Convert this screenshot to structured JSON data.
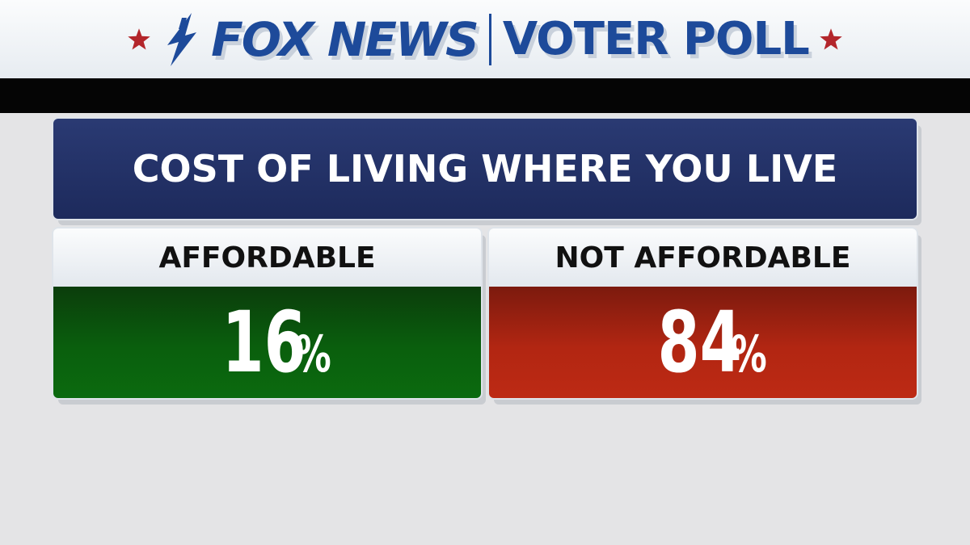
{
  "header": {
    "brand": "FOX NEWS",
    "poll": "VOTER POLL"
  },
  "colors": {
    "brand_blue": "#1d4a9a",
    "title_navy": "#243468",
    "affordable_green": "#0a5f0d",
    "not_affordable_red": "#b22612",
    "star_red": "#b3262b"
  },
  "icons": {
    "brand_mark": "fox-news-lightning-mark",
    "stars": "star-icon"
  },
  "chart_data": {
    "type": "table",
    "title": "COST OF LIVING WHERE YOU LIVE",
    "categories": [
      "AFFORDABLE",
      "NOT AFFORDABLE"
    ],
    "values": [
      16,
      84
    ],
    "unit": "%",
    "value_labels": [
      "16",
      "84"
    ]
  }
}
